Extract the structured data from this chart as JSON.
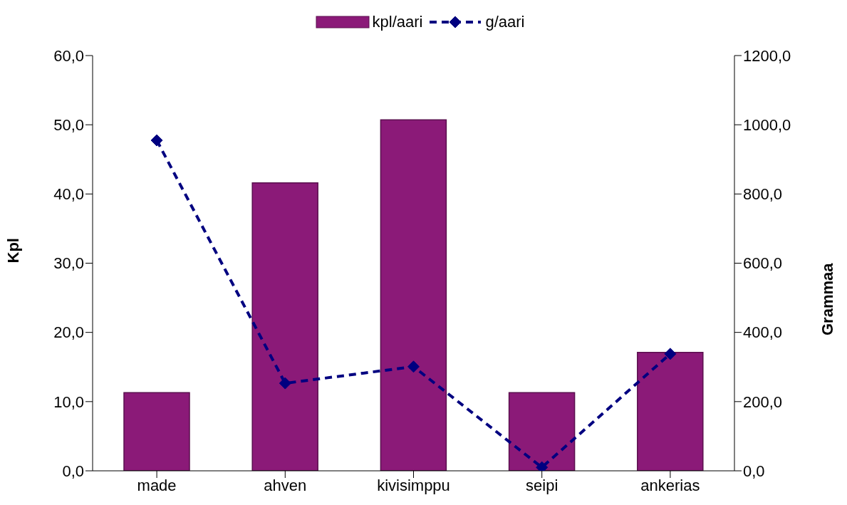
{
  "chart_data": {
    "type": "bar",
    "ylabel": "Kpl",
    "y2label": "Grammaa",
    "categories": [
      "made",
      "ahven",
      "kivisimppu",
      "seipi",
      "ankerias"
    ],
    "series": [
      {
        "name": "kpl/aari",
        "color": "#8b1a78",
        "values": [
          11.3,
          41.6,
          50.7,
          11.3,
          17.1
        ]
      },
      {
        "name": "g/aari",
        "type": "line",
        "axis": "y2",
        "color": "#000080",
        "line_style": "dashed",
        "marker": "diamond",
        "values": [
          955,
          253,
          301,
          10,
          338
        ]
      }
    ],
    "ylim": [
      0,
      60
    ],
    "yticks": [
      {
        "value": 0,
        "label": "0,0"
      },
      {
        "value": 10,
        "label": "10,0"
      },
      {
        "value": 20,
        "label": "20,0"
      },
      {
        "value": 30,
        "label": "30,0"
      },
      {
        "value": 40,
        "label": "40,0"
      },
      {
        "value": 50,
        "label": "50,0"
      },
      {
        "value": 60,
        "label": "60,0"
      }
    ],
    "y2lim": [
      0,
      1200
    ],
    "y2ticks": [
      {
        "value": 0,
        "label": "0,0"
      },
      {
        "value": 200,
        "label": "200,0"
      },
      {
        "value": 400,
        "label": "400,0"
      },
      {
        "value": 600,
        "label": "600,0"
      },
      {
        "value": 800,
        "label": "800,0"
      },
      {
        "value": 1000,
        "label": "1000,0"
      },
      {
        "value": 1200,
        "label": "1200,0"
      }
    ],
    "grid": false,
    "legend": "top"
  }
}
